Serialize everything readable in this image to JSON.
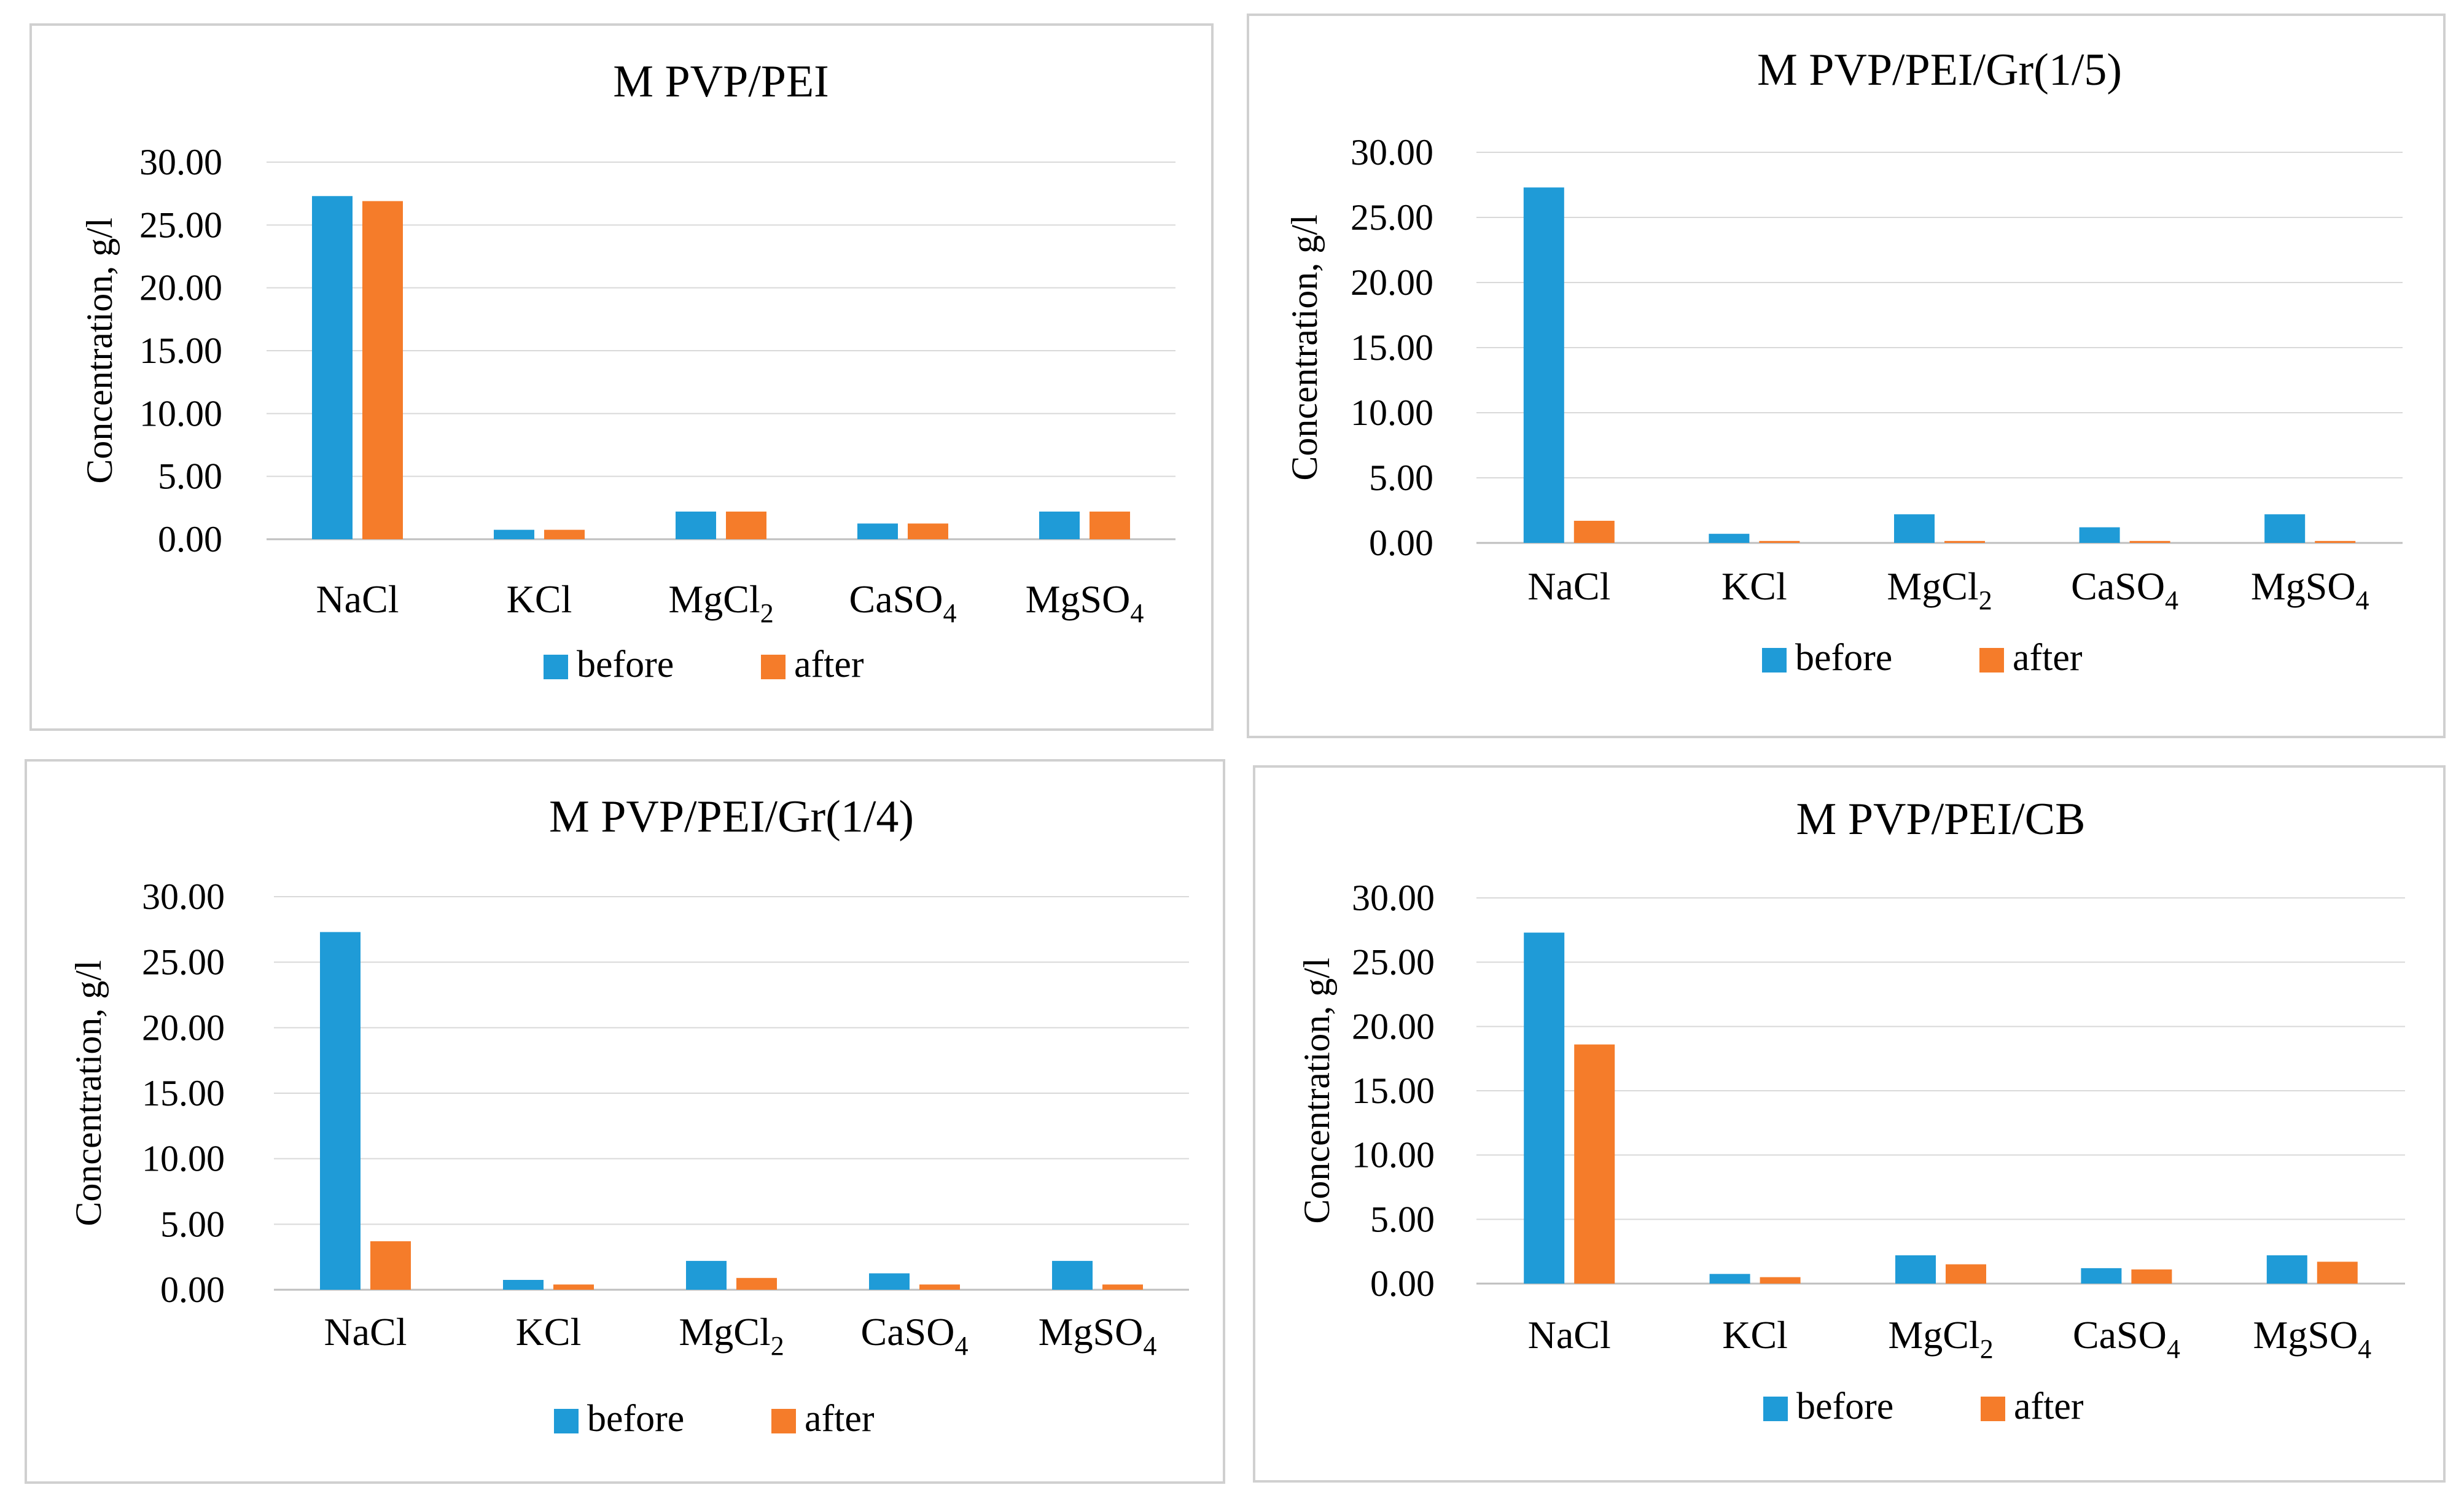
{
  "figure": {
    "legend_before": "before",
    "legend_after": "after"
  },
  "chart_data": [
    {
      "type": "bar",
      "title": "M PVP/PEI",
      "ylabel": "Concentration, g/l",
      "categories": [
        "NaCl",
        "KCl",
        "MgCl2",
        "CaSO4",
        "MgSO4"
      ],
      "category_labels": [
        {
          "base": "NaCl",
          "sub": ""
        },
        {
          "base": "KCl",
          "sub": ""
        },
        {
          "base": "MgCl",
          "sub": "2"
        },
        {
          "base": "CaSO",
          "sub": "4"
        },
        {
          "base": "MgSO",
          "sub": "4"
        }
      ],
      "yticks": [
        "0.00",
        "5.00",
        "10.00",
        "15.00",
        "20.00",
        "25.00",
        "30.00"
      ],
      "ylim": [
        0,
        30
      ],
      "series": [
        {
          "name": "before",
          "color": "#1f9bd7",
          "values": [
            27.3,
            0.75,
            2.2,
            1.25,
            2.2
          ]
        },
        {
          "name": "after",
          "color": "#f57c2a",
          "values": [
            26.9,
            0.75,
            2.2,
            1.25,
            2.2
          ]
        }
      ],
      "legend": "bottom"
    },
    {
      "type": "bar",
      "title": "M PVP/PEI/Gr(1/5)",
      "ylabel": "Concentration, g/l",
      "categories": [
        "NaCl",
        "KCl",
        "MgCl2",
        "CaSO4",
        "MgSO4"
      ],
      "category_labels": [
        {
          "base": "NaCl",
          "sub": ""
        },
        {
          "base": "KCl",
          "sub": ""
        },
        {
          "base": "MgCl",
          "sub": "2"
        },
        {
          "base": "CaSO",
          "sub": "4"
        },
        {
          "base": "MgSO",
          "sub": "4"
        }
      ],
      "yticks": [
        "0.00",
        "5.00",
        "10.00",
        "15.00",
        "20.00",
        "25.00",
        "30.00"
      ],
      "ylim": [
        0,
        30
      ],
      "series": [
        {
          "name": "before",
          "color": "#1f9bd7",
          "values": [
            27.3,
            0.7,
            2.2,
            1.2,
            2.2
          ]
        },
        {
          "name": "after",
          "color": "#f57c2a",
          "values": [
            1.7,
            0.15,
            0.15,
            0.15,
            0.15
          ]
        }
      ],
      "legend": "bottom"
    },
    {
      "type": "bar",
      "title": "M PVP/PEI/Gr(1/4)",
      "ylabel": "Concentration, g/l",
      "categories": [
        "NaCl",
        "KCl",
        "MgCl2",
        "CaSO4",
        "MgSO4"
      ],
      "category_labels": [
        {
          "base": "NaCl",
          "sub": ""
        },
        {
          "base": "KCl",
          "sub": ""
        },
        {
          "base": "MgCl",
          "sub": "2"
        },
        {
          "base": "CaSO",
          "sub": "4"
        },
        {
          "base": "MgSO",
          "sub": "4"
        }
      ],
      "yticks": [
        "0.00",
        "5.00",
        "10.00",
        "15.00",
        "20.00",
        "25.00",
        "30.00"
      ],
      "ylim": [
        0,
        30
      ],
      "series": [
        {
          "name": "before",
          "color": "#1f9bd7",
          "values": [
            27.3,
            0.75,
            2.2,
            1.25,
            2.2
          ]
        },
        {
          "name": "after",
          "color": "#f57c2a",
          "values": [
            3.7,
            0.4,
            0.9,
            0.4,
            0.4
          ]
        }
      ],
      "legend": "bottom"
    },
    {
      "type": "bar",
      "title": "M PVP/PEI/CB",
      "ylabel": "Concentration, g/l",
      "categories": [
        "NaCl",
        "KCl",
        "MgCl2",
        "CaSO4",
        "MgSO4"
      ],
      "category_labels": [
        {
          "base": "NaCl",
          "sub": ""
        },
        {
          "base": "KCl",
          "sub": ""
        },
        {
          "base": "MgCl",
          "sub": "2"
        },
        {
          "base": "CaSO",
          "sub": "4"
        },
        {
          "base": "MgSO",
          "sub": "4"
        }
      ],
      "yticks": [
        "0.00",
        "5.00",
        "10.00",
        "15.00",
        "20.00",
        "25.00",
        "30.00"
      ],
      "ylim": [
        0,
        30
      ],
      "series": [
        {
          "name": "before",
          "color": "#1f9bd7",
          "values": [
            27.3,
            0.75,
            2.2,
            1.2,
            2.2
          ]
        },
        {
          "name": "after",
          "color": "#f57c2a",
          "values": [
            18.6,
            0.5,
            1.5,
            1.1,
            1.7
          ]
        }
      ],
      "legend": "bottom"
    }
  ]
}
